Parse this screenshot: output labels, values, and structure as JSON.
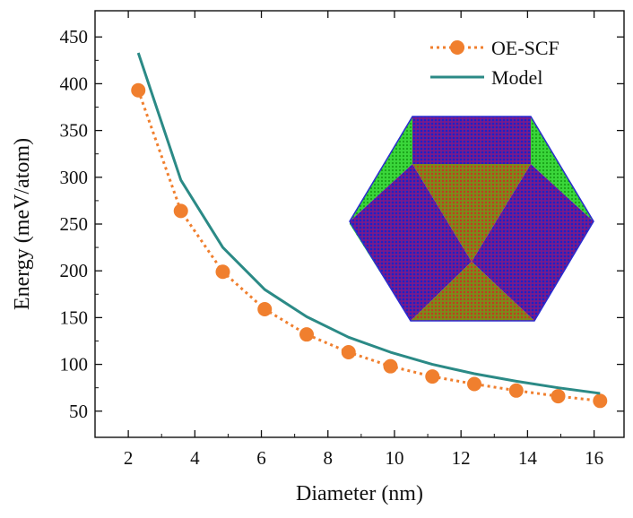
{
  "chart_data": {
    "type": "line",
    "xlabel": "Diameter (nm)",
    "ylabel": "Energy (meV/atom)",
    "xlim": [
      1.0,
      16.9
    ],
    "ylim": [
      22,
      478
    ],
    "xticks": [
      2,
      4,
      6,
      8,
      10,
      12,
      14,
      16
    ],
    "yticks": [
      50,
      100,
      150,
      200,
      250,
      300,
      350,
      400,
      450
    ],
    "grid": false,
    "legend_position": "top-right",
    "series": [
      {
        "name": "OE-SCF",
        "style": "dotted-line-with-circle-markers",
        "color": "#f07f2e",
        "x": [
          2.3,
          3.58,
          4.84,
          6.1,
          7.36,
          8.62,
          9.88,
          11.14,
          12.4,
          13.66,
          14.92,
          16.18
        ],
        "y": [
          393,
          264,
          199,
          159,
          132,
          113,
          98,
          87,
          79,
          72,
          66,
          61
        ]
      },
      {
        "name": "Model",
        "style": "solid-line",
        "color": "#2b8a86",
        "x": [
          2.3,
          3.58,
          4.84,
          6.1,
          7.36,
          8.62,
          9.88,
          11.14,
          12.4,
          13.66,
          14.92,
          16.18
        ],
        "y": [
          433,
          297,
          225,
          180,
          151,
          129,
          113,
          100,
          90,
          82,
          75,
          69
        ]
      }
    ],
    "inset": {
      "description_name": "cuboctahedral-nanoparticle-inset",
      "colors": {
        "green": "#22cc22",
        "red": "#cc1133",
        "blue": "#1a23c8",
        "olive": "#8a8a1a",
        "rim": "#2b2bd0"
      }
    }
  }
}
